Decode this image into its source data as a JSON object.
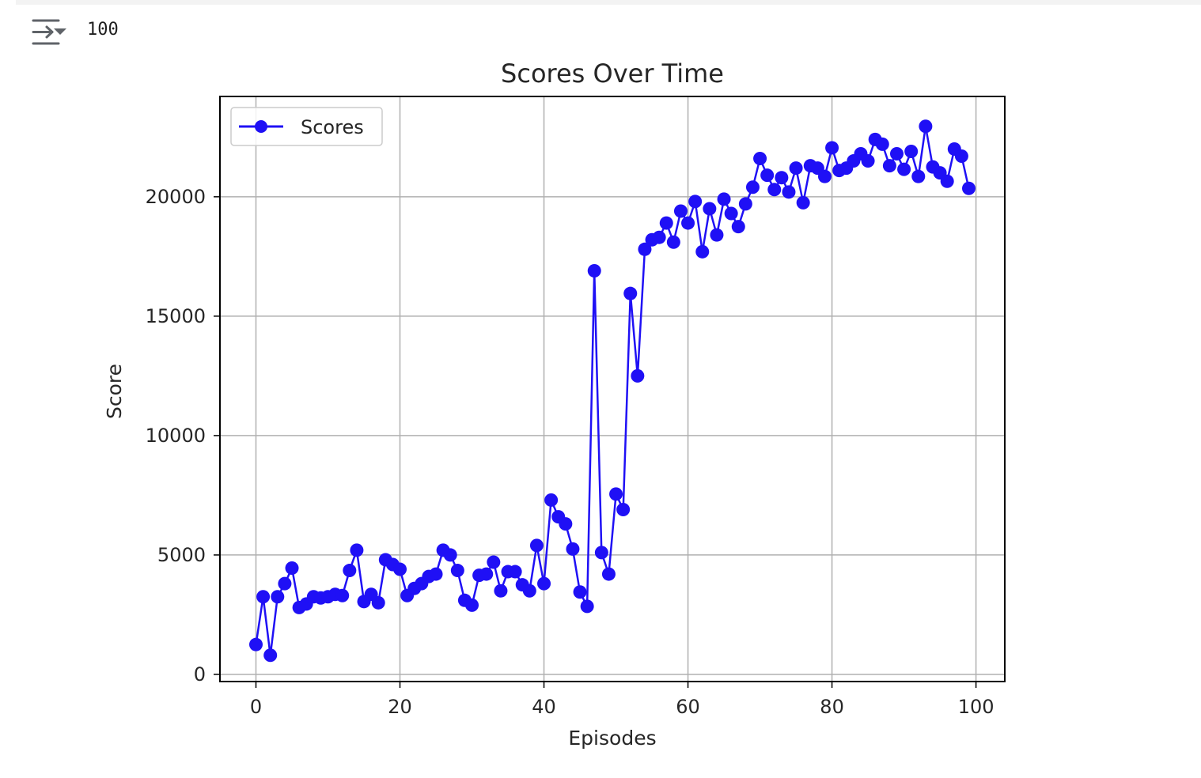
{
  "output": {
    "icon": "collapse-output-icon",
    "text": "100"
  },
  "chart_data": {
    "type": "line",
    "title": "Scores Over Time",
    "xlabel": "Episodes",
    "ylabel": "Score",
    "xlim": [
      -5,
      104
    ],
    "ylim": [
      -300,
      24200
    ],
    "xticks": [
      0,
      20,
      40,
      60,
      80,
      100
    ],
    "yticks": [
      0,
      5000,
      10000,
      15000,
      20000
    ],
    "grid": true,
    "legend_position": "top-left",
    "series": [
      {
        "name": "Scores",
        "color": "#1f10f5",
        "marker": "circle",
        "x": [
          0,
          1,
          2,
          3,
          4,
          5,
          6,
          7,
          8,
          9,
          10,
          11,
          12,
          13,
          14,
          15,
          16,
          17,
          18,
          19,
          20,
          21,
          22,
          23,
          24,
          25,
          26,
          27,
          28,
          29,
          30,
          31,
          32,
          33,
          34,
          35,
          36,
          37,
          38,
          39,
          40,
          41,
          42,
          43,
          44,
          45,
          46,
          47,
          48,
          49,
          50,
          51,
          52,
          53,
          54,
          55,
          56,
          57,
          58,
          59,
          60,
          61,
          62,
          63,
          64,
          65,
          66,
          67,
          68,
          69,
          70,
          71,
          72,
          73,
          74,
          75,
          76,
          77,
          78,
          79,
          80,
          81,
          82,
          83,
          84,
          85,
          86,
          87,
          88,
          89,
          90,
          91,
          92,
          93,
          94,
          95,
          96,
          97,
          98,
          99
        ],
        "values": [
          1250,
          3250,
          800,
          3250,
          3800,
          4450,
          2800,
          2950,
          3250,
          3200,
          3250,
          3350,
          3300,
          4350,
          5200,
          3050,
          3350,
          3000,
          4800,
          4600,
          4400,
          3300,
          3600,
          3800,
          4100,
          4200,
          5200,
          5000,
          4350,
          3100,
          2900,
          4150,
          4200,
          4700,
          3500,
          4300,
          4300,
          3750,
          3500,
          5400,
          3800,
          7300,
          6600,
          6300,
          5250,
          3450,
          2850,
          16900,
          5100,
          4200,
          7550,
          6900,
          15950,
          12500,
          17800,
          18200,
          18300,
          18900,
          18100,
          19400,
          18900,
          19800,
          17700,
          19500,
          18400,
          19900,
          19300,
          18750,
          19700,
          20400,
          21600,
          20900,
          20300,
          20800,
          20200,
          21200,
          19750,
          21300,
          21200,
          20850,
          22050,
          21100,
          21200,
          21500,
          21800,
          21500,
          22400,
          22200,
          21300,
          21800,
          21150,
          21900,
          20850,
          22950,
          21250,
          21000,
          20650,
          22000,
          21700,
          20350
        ]
      }
    ]
  }
}
